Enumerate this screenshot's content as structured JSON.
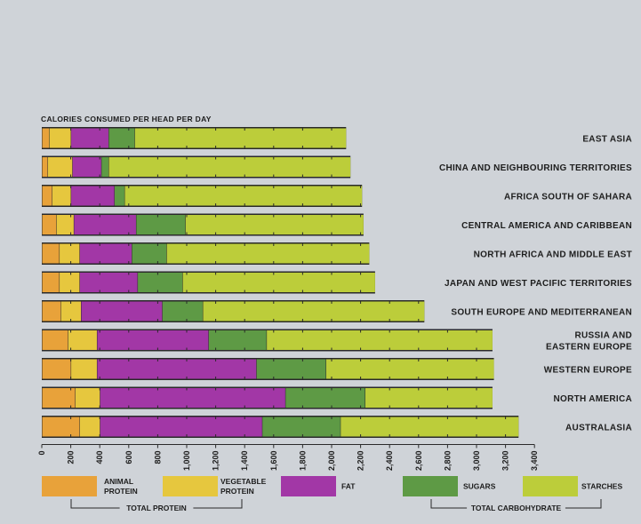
{
  "chart_data": {
    "type": "bar",
    "orientation": "horizontal",
    "stacked": true,
    "title": "CALORIES CONSUMED PER HEAD PER DAY",
    "categories": [
      "EAST ASIA",
      "CHINA AND NEIGHBOURING TERRITORIES",
      "AFRICA SOUTH OF SAHARA",
      "CENTRAL AMERICA AND CARIBBEAN",
      "NORTH AFRICA AND MIDDLE EAST",
      "JAPAN AND WEST PACIFIC TERRITORIES",
      "SOUTH EUROPE AND MEDITERRANEAN",
      "RUSSIA AND|EASTERN EUROPE",
      "WESTERN EUROPE",
      "NORTH AMERICA",
      "AUSTRALASIA"
    ],
    "series": [
      {
        "name": "ANIMAL PROTEIN",
        "color": "#e8a23a",
        "values": [
          50,
          40,
          70,
          100,
          120,
          120,
          130,
          180,
          200,
          230,
          260
        ]
      },
      {
        "name": "VEGETABLE PROTEIN",
        "color": "#e6c73e",
        "values": [
          150,
          170,
          130,
          120,
          140,
          140,
          140,
          200,
          180,
          170,
          140
        ]
      },
      {
        "name": "FAT",
        "color": "#a237a6",
        "values": [
          260,
          200,
          300,
          430,
          360,
          400,
          560,
          770,
          1100,
          1280,
          1120
        ]
      },
      {
        "name": "SUGARS",
        "color": "#5e9a45",
        "values": [
          180,
          50,
          70,
          340,
          240,
          310,
          280,
          400,
          480,
          550,
          540
        ]
      },
      {
        "name": "STARCHES",
        "color": "#bccd3a",
        "values": [
          1460,
          1670,
          1640,
          1230,
          1400,
          1330,
          1530,
          1560,
          1160,
          880,
          1230
        ]
      }
    ],
    "xlim": [
      0,
      3400
    ],
    "xticks": [
      "0",
      "200",
      "400",
      "600",
      "800",
      "1,000",
      "1,200",
      "1,400",
      "1,600",
      "1,800",
      "2,000",
      "2,200",
      "2,400",
      "2,600",
      "2,800",
      "3,000",
      "3,200",
      "3,400"
    ],
    "legend": {
      "items": [
        {
          "label": "ANIMAL|PROTEIN",
          "color": "#e8a23a"
        },
        {
          "label": "VEGETABLE|PROTEIN",
          "color": "#e6c73e"
        },
        {
          "label": "FAT",
          "color": "#a237a6"
        },
        {
          "label": "SUGARS",
          "color": "#5e9a45"
        },
        {
          "label": "STARCHES",
          "color": "#bccd3a"
        }
      ],
      "groups": [
        "TOTAL PROTEIN",
        "TOTAL CARBOHYDRATE"
      ],
      "position": "bottom"
    }
  }
}
